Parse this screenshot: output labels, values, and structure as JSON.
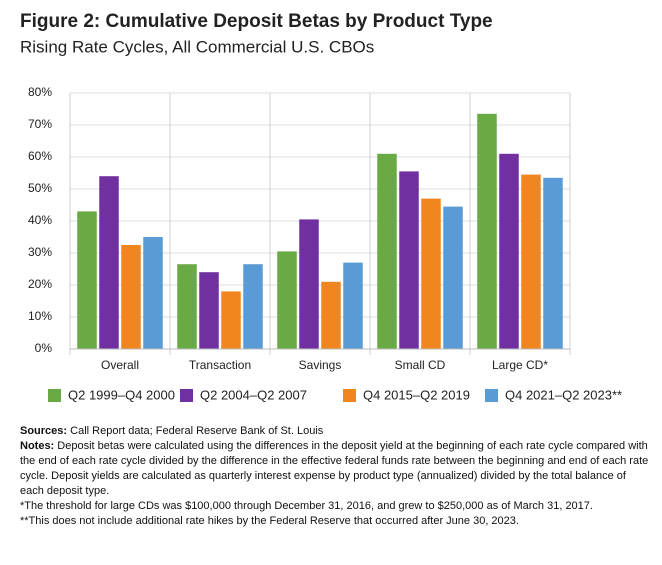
{
  "chart_data": {
    "type": "bar",
    "title": "Figure 2: Cumulative Deposit Betas by Product Type",
    "subtitle": "Rising Rate Cycles, All Commercial U.S. CBOs",
    "categories": [
      "Overall",
      "Transaction",
      "Savings",
      "Small CD",
      "Large CD*"
    ],
    "series": [
      {
        "name": "Q2 1999–Q4 2000",
        "color": "#6aaa45",
        "values": [
          43,
          26.5,
          30.5,
          61,
          73.5
        ]
      },
      {
        "name": "Q2 2004–Q2 2007",
        "color": "#7030a0",
        "values": [
          54,
          24,
          40.5,
          55.5,
          61
        ]
      },
      {
        "name": "Q4 2015–Q2 2019",
        "color": "#f0861d",
        "values": [
          32.5,
          18,
          21,
          47,
          54.5
        ]
      },
      {
        "name": "Q4 2021–Q2 2023**",
        "color": "#5b9bd5",
        "values": [
          35,
          26.5,
          27,
          44.5,
          53.5
        ]
      }
    ],
    "ylim": [
      0,
      80
    ],
    "yticks": [
      {
        "value": 0,
        "label": "0%"
      },
      {
        "value": 10,
        "label": "10%"
      },
      {
        "value": 20,
        "label": "20%"
      },
      {
        "value": 30,
        "label": "30%"
      },
      {
        "value": 40,
        "label": "40%"
      },
      {
        "value": 50,
        "label": "50%"
      },
      {
        "value": 60,
        "label": "60%"
      },
      {
        "value": 70,
        "label": "70%"
      },
      {
        "value": 80,
        "label": "80%"
      }
    ],
    "grid": true
  },
  "notes": {
    "sources_label": "Sources:",
    "sources": "Call Report data; Federal Reserve Bank of St. Louis",
    "notes_label": "Notes:",
    "notes": "Deposit betas were calculated using the differences in the deposit yield at the beginning of each rate cycle compared with the end of each rate cycle divided by the difference in the effective federal funds rate between the beginning and end of each rate cycle. Deposit yields are calculated as quarterly interest expense by product type (annualized) divided by the total balance of each deposit type.",
    "footnotes": [
      "*The threshold for large CDs was $100,000 through December 31, 2016, and grew to $250,000 as of March 31, 2017.",
      "**This does not include additional rate hikes by the Federal Reserve that occurred after June 30, 2023."
    ]
  }
}
